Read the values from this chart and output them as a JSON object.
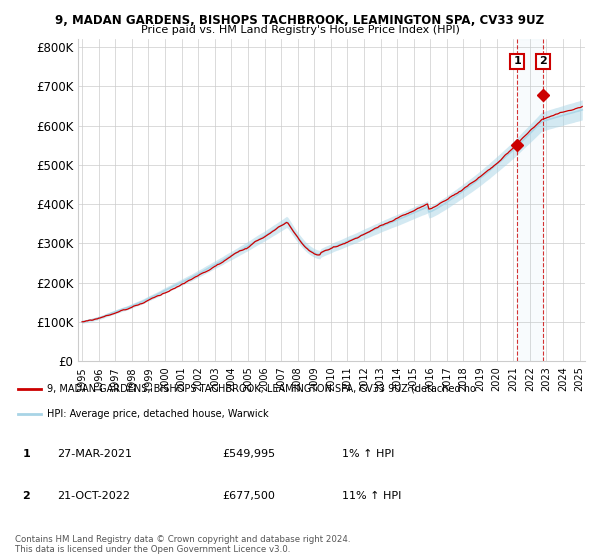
{
  "title1": "9, MADAN GARDENS, BISHOPS TACHBROOK, LEAMINGTON SPA, CV33 9UZ",
  "title2": "Price paid vs. HM Land Registry's House Price Index (HPI)",
  "legend_label1": "9, MADAN GARDENS, BISHOPS TACHBROOK, LEAMINGTON SPA, CV33 9UZ (detached ho",
  "legend_label2": "HPI: Average price, detached house, Warwick",
  "annotation1": {
    "label": "1",
    "date": "27-MAR-2021",
    "price": 549995,
    "pct": "1% ↑ HPI"
  },
  "annotation2": {
    "label": "2",
    "date": "21-OCT-2022",
    "price": 677500,
    "pct": "11% ↑ HPI"
  },
  "copyright": "Contains HM Land Registry data © Crown copyright and database right 2024.\nThis data is licensed under the Open Government Licence v3.0.",
  "ylim": [
    0,
    820000
  ],
  "yticks": [
    0,
    100000,
    200000,
    300000,
    400000,
    500000,
    600000,
    700000,
    800000
  ],
  "ytick_labels": [
    "£0",
    "£100K",
    "£200K",
    "£300K",
    "£400K",
    "£500K",
    "£600K",
    "£700K",
    "£800K"
  ],
  "hpi_color": "#a8d4e6",
  "price_color": "#cc0000",
  "background_color": "#ffffff",
  "grid_color": "#cccccc",
  "sale1_year": 2021,
  "sale1_month": 3,
  "sale1_day": 27,
  "sale1_price": 549995,
  "sale2_year": 2022,
  "sale2_month": 10,
  "sale2_day": 21,
  "sale2_price": 677500
}
